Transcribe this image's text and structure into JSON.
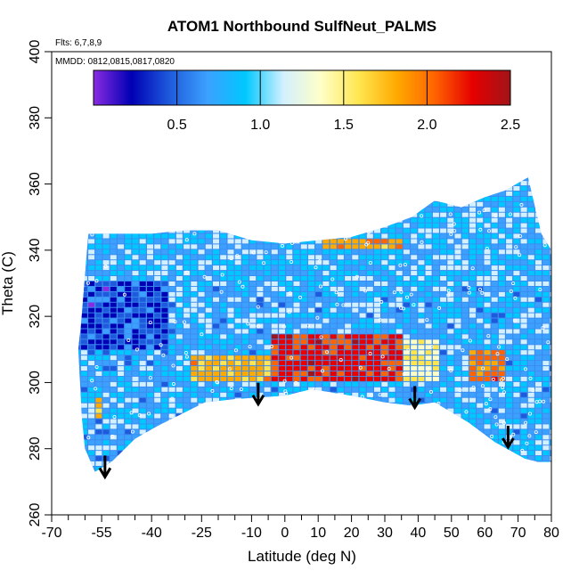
{
  "chart_data": {
    "type": "heatmap",
    "title": "ATOM1 Northbound SulfNeut_PALMS",
    "annotations": {
      "flights": "Flts: 6,7,8,9",
      "dates": "MMDD: 0812,0815,0817,0820"
    },
    "xlabel": "Latitude (deg N)",
    "ylabel": "Theta (C)",
    "xlim": [
      -70,
      80
    ],
    "ylim": [
      260,
      400
    ],
    "x_ticks_major": [
      -70,
      -55,
      -40,
      -25,
      -10,
      0,
      10,
      20,
      30,
      40,
      50,
      60,
      70,
      80
    ],
    "x_ticks_minor": [
      -65,
      -60,
      -50,
      -45,
      -35,
      -30,
      -20,
      -15,
      -5,
      5,
      15,
      25,
      35,
      45,
      55,
      65,
      75
    ],
    "y_ticks": [
      260,
      280,
      300,
      320,
      340,
      360,
      380,
      400
    ],
    "colorbar": {
      "range": [
        0,
        2.5
      ],
      "ticks": [
        0.5,
        1.0,
        1.5,
        2.0,
        2.5
      ],
      "tick_labels": [
        "0.5",
        "1.0",
        "1.5",
        "2.0",
        "2.5"
      ],
      "colors": [
        "#8a2be2",
        "#0000b4",
        "#1e5adc",
        "#3ca0ff",
        "#00c8ff",
        "#d2f0ff",
        "#ffffc8",
        "#ffe650",
        "#ffaa00",
        "#ff6400",
        "#e60000",
        "#a01419"
      ]
    },
    "domain_lower": [
      [
        -60,
        280
      ],
      [
        -57,
        273
      ],
      [
        -52,
        276
      ],
      [
        -45,
        283
      ],
      [
        -38,
        287
      ],
      [
        -30,
        291
      ],
      [
        -24,
        294
      ],
      [
        -15,
        295
      ],
      [
        0,
        296
      ],
      [
        8,
        298
      ],
      [
        20,
        296
      ],
      [
        30,
        294
      ],
      [
        38,
        293
      ],
      [
        45,
        294
      ],
      [
        55,
        288
      ],
      [
        63,
        282
      ],
      [
        72,
        277
      ],
      [
        76,
        276
      ],
      [
        80,
        276
      ]
    ],
    "domain_upper": [
      [
        80,
        340
      ],
      [
        77,
        345
      ],
      [
        73,
        362
      ],
      [
        66,
        358
      ],
      [
        60,
        356
      ],
      [
        53,
        353
      ],
      [
        45,
        355
      ],
      [
        38,
        350
      ],
      [
        30,
        347
      ],
      [
        20,
        344
      ],
      [
        10,
        343
      ],
      [
        0,
        342
      ],
      [
        -10,
        343
      ],
      [
        -20,
        346
      ],
      [
        -30,
        346
      ],
      [
        -40,
        345
      ],
      [
        -48,
        345
      ],
      [
        -55,
        345
      ],
      [
        -59,
        345
      ],
      [
        -61,
        320
      ],
      [
        -62,
        310
      ],
      [
        -61,
        290
      ],
      [
        -60,
        280
      ]
    ],
    "hot_regions": [
      {
        "x": [
          -5,
          35
        ],
        "y": [
          299,
          314
        ],
        "value": 2.3
      },
      {
        "x": [
          -30,
          -5
        ],
        "y": [
          300,
          308
        ],
        "value": 1.9
      },
      {
        "x": [
          35,
          45
        ],
        "y": [
          300,
          312
        ],
        "value": 1.6
      },
      {
        "x": [
          55,
          65
        ],
        "y": [
          300,
          310
        ],
        "value": 2.1
      },
      {
        "x": [
          10,
          35
        ],
        "y": [
          339,
          343
        ],
        "value": 2.0
      },
      {
        "x": [
          -58,
          -55
        ],
        "y": [
          288,
          295
        ],
        "value": 1.9
      }
    ],
    "arrows_x": [
      -54,
      -8,
      39,
      67
    ],
    "arrows_y": [
      272,
      294,
      293,
      281
    ]
  }
}
